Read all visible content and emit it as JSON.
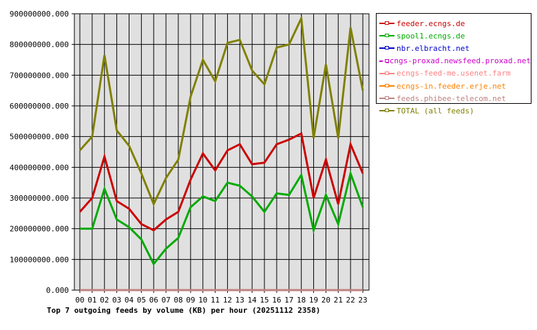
{
  "chart_data": {
    "type": "line",
    "title": "Top 7 outgoing feeds by volume (KB) per hour (20251112 2358)",
    "x": [
      "00",
      "01",
      "02",
      "03",
      "04",
      "05",
      "06",
      "07",
      "08",
      "09",
      "10",
      "11",
      "12",
      "13",
      "14",
      "15",
      "16",
      "17",
      "18",
      "19",
      "20",
      "21",
      "22",
      "23"
    ],
    "ylim": [
      0,
      900000000
    ],
    "yticks": [
      "0.000",
      "100000000.000",
      "200000000.000",
      "300000000.000",
      "400000000.000",
      "500000000.000",
      "600000000.000",
      "700000000.000",
      "800000000.000",
      "900000000.000"
    ],
    "grid": true,
    "legend_position": "right",
    "series": [
      {
        "name": "feeder.ecngs.de",
        "color": "#cc0000",
        "values": [
          255000000,
          300000000,
          435000000,
          290000000,
          265000000,
          215000000,
          195000000,
          230000000,
          255000000,
          360000000,
          445000000,
          390000000,
          455000000,
          475000000,
          410000000,
          415000000,
          475000000,
          490000000,
          510000000,
          300000000,
          425000000,
          280000000,
          475000000,
          380000000
        ]
      },
      {
        "name": "spool1.ecngs.de",
        "color": "#00aa00",
        "values": [
          200000000,
          200000000,
          330000000,
          230000000,
          205000000,
          165000000,
          85000000,
          135000000,
          170000000,
          270000000,
          305000000,
          290000000,
          350000000,
          340000000,
          305000000,
          255000000,
          315000000,
          310000000,
          375000000,
          195000000,
          310000000,
          215000000,
          380000000,
          270000000
        ]
      },
      {
        "name": "nbr.elbracht.net",
        "color": "#0000cc",
        "values": [
          0,
          0,
          0,
          0,
          0,
          0,
          0,
          0,
          0,
          0,
          0,
          0,
          0,
          0,
          0,
          0,
          0,
          0,
          0,
          0,
          0,
          0,
          0,
          0
        ]
      },
      {
        "name": "ecngs-proxad.newsfeed.proxad.net",
        "color": "#cc00cc",
        "values": [
          0,
          0,
          0,
          0,
          0,
          0,
          0,
          0,
          0,
          0,
          0,
          0,
          0,
          0,
          0,
          0,
          0,
          0,
          0,
          0,
          0,
          0,
          0,
          0
        ]
      },
      {
        "name": "ecngs-feed-me.usenet.farm",
        "color": "#ff8080",
        "values": [
          0,
          0,
          0,
          0,
          0,
          0,
          0,
          0,
          0,
          0,
          0,
          0,
          0,
          0,
          0,
          0,
          0,
          0,
          0,
          0,
          0,
          0,
          0,
          0
        ]
      },
      {
        "name": "ecngs-in.feeder.erje.net",
        "color": "#ff8000",
        "values": [
          0,
          0,
          0,
          0,
          0,
          0,
          0,
          0,
          0,
          0,
          0,
          0,
          0,
          0,
          0,
          0,
          0,
          0,
          0,
          0,
          0,
          0,
          0,
          0
        ]
      },
      {
        "name": "feeds.phibee-telecom.net",
        "color": "#c08080",
        "values": [
          0,
          0,
          0,
          0,
          0,
          0,
          0,
          0,
          0,
          0,
          0,
          0,
          0,
          0,
          0,
          0,
          0,
          0,
          0,
          0,
          0,
          0,
          0,
          0
        ]
      },
      {
        "name": "TOTAL (all feeds)",
        "color": "#808000",
        "values": [
          455000000,
          500000000,
          765000000,
          520000000,
          470000000,
          380000000,
          280000000,
          365000000,
          425000000,
          630000000,
          750000000,
          680000000,
          805000000,
          815000000,
          715000000,
          670000000,
          790000000,
          800000000,
          885000000,
          495000000,
          735000000,
          495000000,
          855000000,
          650000000
        ]
      }
    ]
  }
}
